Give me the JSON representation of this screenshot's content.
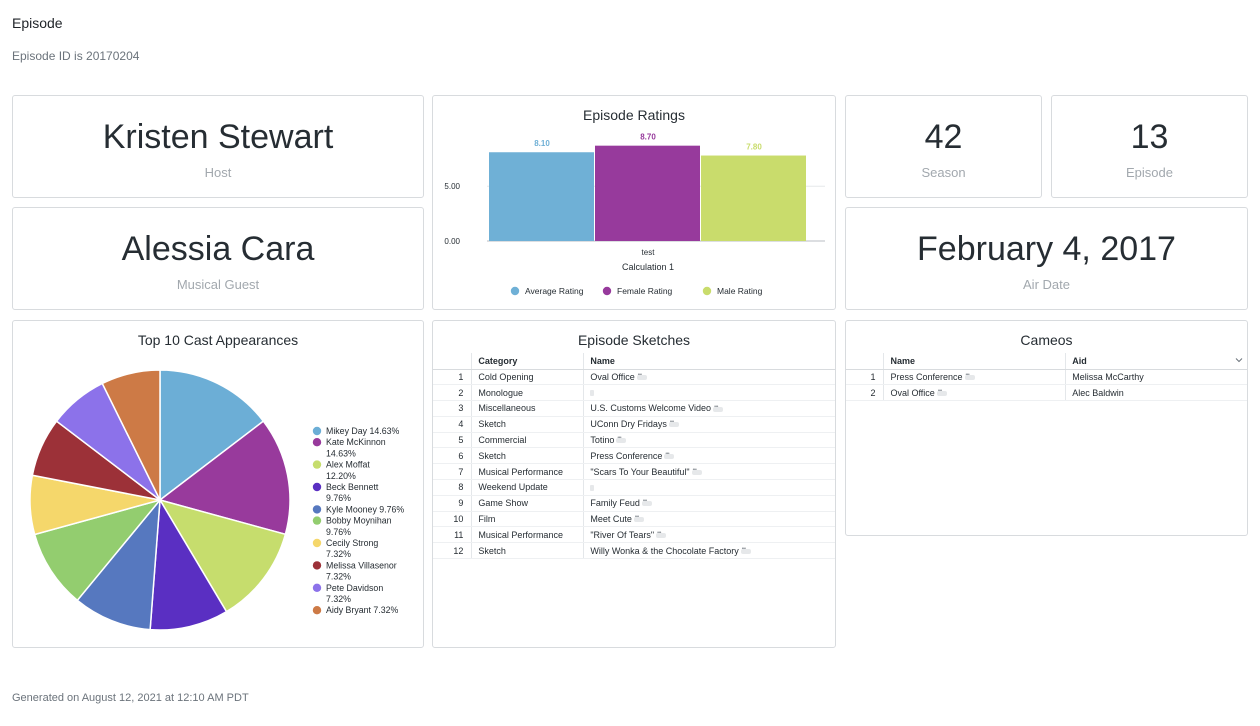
{
  "page": {
    "title": "Episode",
    "subtitle": "Episode ID is 20170204",
    "footer": "Generated on August 12, 2021 at 12:10 AM PDT"
  },
  "tiles": {
    "host": {
      "value": "Kristen Stewart",
      "label": "Host"
    },
    "musical_guest": {
      "value": "Alessia Cara",
      "label": "Musical Guest"
    },
    "season": {
      "value": "42",
      "label": "Season"
    },
    "episode": {
      "value": "13",
      "label": "Episode"
    },
    "air_date": {
      "value": "February 4, 2017",
      "label": "Air Date"
    }
  },
  "ratings": {
    "title": "Episode Ratings",
    "xlabel": "Calculation 1"
  },
  "cast": {
    "title": "Top 10 Cast Appearances"
  },
  "sketches": {
    "title": "Episode Sketches",
    "columns": [
      "Category",
      "Name"
    ],
    "rows": [
      {
        "n": "1",
        "category": "Cold Opening",
        "name": "Oval Office"
      },
      {
        "n": "2",
        "category": "Monologue",
        "name": ""
      },
      {
        "n": "3",
        "category": "Miscellaneous",
        "name": "U.S. Customs Welcome Video"
      },
      {
        "n": "4",
        "category": "Sketch",
        "name": "UConn Dry Fridays"
      },
      {
        "n": "5",
        "category": "Commercial",
        "name": "Totino"
      },
      {
        "n": "6",
        "category": "Sketch",
        "name": "Press Conference"
      },
      {
        "n": "7",
        "category": "Musical Performance",
        "name": "\"Scars To Your Beautiful\""
      },
      {
        "n": "8",
        "category": "Weekend Update",
        "name": ""
      },
      {
        "n": "9",
        "category": "Game Show",
        "name": "Family Feud"
      },
      {
        "n": "10",
        "category": "Film",
        "name": "Meet Cute"
      },
      {
        "n": "11",
        "category": "Musical Performance",
        "name": "\"River Of Tears\""
      },
      {
        "n": "12",
        "category": "Sketch",
        "name": "Willy Wonka & the Chocolate Factory"
      }
    ]
  },
  "cameos": {
    "title": "Cameos",
    "columns": [
      "Name",
      "Aid"
    ],
    "rows": [
      {
        "n": "1",
        "name": "Press Conference",
        "aid": "Melissa McCarthy"
      },
      {
        "n": "2",
        "name": "Oval Office",
        "aid": "Alec Baldwin"
      }
    ]
  },
  "chart_data": [
    {
      "type": "bar",
      "title": "Episode Ratings",
      "categories": [
        "test"
      ],
      "xlabel": "Calculation 1",
      "ylabel": "",
      "ylim": [
        0,
        9.4
      ],
      "yticks": [
        "0.00",
        "5.00"
      ],
      "legend_position": "bottom",
      "series": [
        {
          "name": "Average Rating",
          "values": [
            8.1
          ],
          "label": "8.10",
          "color": "#6fb0d6"
        },
        {
          "name": "Female Rating",
          "values": [
            8.7
          ],
          "label": "8.70",
          "color": "#973a9c"
        },
        {
          "name": "Male Rating",
          "values": [
            7.8
          ],
          "label": "7.80",
          "color": "#c9dc6c"
        }
      ]
    },
    {
      "type": "pie",
      "title": "Top 10 Cast Appearances",
      "legend_position": "right",
      "slices": [
        {
          "label": "Mikey Day",
          "percent": "14.63%",
          "value": 14.63,
          "color": "#6caed6"
        },
        {
          "label": "Kate McKinnon",
          "percent": "14.63%",
          "value": 14.63,
          "color": "#983a9c"
        },
        {
          "label": "Alex Moffat",
          "percent": "12.20%",
          "value": 12.2,
          "color": "#c6dd6d"
        },
        {
          "label": "Beck Bennett",
          "percent": "9.76%",
          "value": 9.76,
          "color": "#5a2fc2"
        },
        {
          "label": "Kyle Mooney",
          "percent": "9.76%",
          "value": 9.76,
          "color": "#5678bf"
        },
        {
          "label": "Bobby Moynihan",
          "percent": "9.76%",
          "value": 9.76,
          "color": "#93cd6f"
        },
        {
          "label": "Cecily Strong",
          "percent": "7.32%",
          "value": 7.32,
          "color": "#f5d76b"
        },
        {
          "label": "Melissa Villasenor",
          "percent": "7.32%",
          "value": 7.32,
          "color": "#9c3138"
        },
        {
          "label": "Pete Davidson",
          "percent": "7.32%",
          "value": 7.32,
          "color": "#8c72ea"
        },
        {
          "label": "Aidy Bryant",
          "percent": "7.32%",
          "value": 7.32,
          "color": "#cd7a46"
        }
      ]
    }
  ]
}
